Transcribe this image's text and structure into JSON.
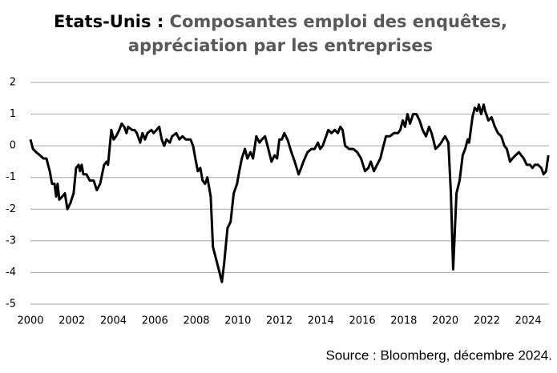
{
  "chart_data": {
    "type": "line",
    "title": "Etats-Unis :",
    "subtitle": "Composantes emploi des enquêtes, appréciation par les entreprises",
    "source": "Source : Bloomberg, décembre 2024.",
    "x": [
      2000.0,
      2000.12,
      2000.27,
      2000.46,
      2000.62,
      2000.77,
      2000.93,
      2001.04,
      2001.16,
      2001.24,
      2001.31,
      2001.39,
      2001.54,
      2001.66,
      2001.78,
      2001.93,
      2002.08,
      2002.2,
      2002.32,
      2002.39,
      2002.47,
      2002.55,
      2002.7,
      2002.86,
      2003.05,
      2003.2,
      2003.36,
      2003.55,
      2003.67,
      2003.74,
      2003.9,
      2004.01,
      2004.13,
      2004.28,
      2004.4,
      2004.52,
      2004.63,
      2004.71,
      2004.9,
      2005.02,
      2005.13,
      2005.29,
      2005.4,
      2005.52,
      2005.64,
      2005.83,
      2005.94,
      2006.21,
      2006.33,
      2006.45,
      2006.56,
      2006.72,
      2006.83,
      2007.03,
      2007.18,
      2007.33,
      2007.49,
      2007.72,
      2007.84,
      2007.95,
      2008.07,
      2008.19,
      2008.3,
      2008.42,
      2008.53,
      2008.69,
      2008.8,
      2009.0,
      2009.23,
      2009.34,
      2009.5,
      2009.65,
      2009.8,
      2009.96,
      2010.07,
      2010.19,
      2010.34,
      2010.46,
      2010.61,
      2010.73,
      2010.89,
      2011.04,
      2011.16,
      2011.31,
      2011.43,
      2011.62,
      2011.77,
      2011.89,
      2012.0,
      2012.12,
      2012.24,
      2012.39,
      2012.58,
      2012.74,
      2012.93,
      2013.05,
      2013.16,
      2013.36,
      2013.55,
      2013.7,
      2013.86,
      2013.97,
      2014.09,
      2014.2,
      2014.36,
      2014.51,
      2014.67,
      2014.82,
      2014.94,
      2015.05,
      2015.17,
      2015.36,
      2015.56,
      2015.75,
      2015.94,
      2016.13,
      2016.29,
      2016.41,
      2016.56,
      2016.71,
      2016.87,
      2016.98,
      2017.14,
      2017.33,
      2017.52,
      2017.72,
      2017.83,
      2017.95,
      2018.06,
      2018.18,
      2018.3,
      2018.45,
      2018.61,
      2018.76,
      2018.91,
      2019.07,
      2019.22,
      2019.34,
      2019.42,
      2019.53,
      2019.69,
      2019.8,
      2019.99,
      2020.15,
      2020.27,
      2020.38,
      2020.54,
      2020.69,
      2020.84,
      2020.96,
      2021.08,
      2021.15,
      2021.31,
      2021.42,
      2021.54,
      2021.62,
      2021.73,
      2021.85,
      2021.92,
      2022.08,
      2022.23,
      2022.39,
      2022.54,
      2022.7,
      2022.85,
      2022.97,
      2023.12,
      2023.24,
      2023.39,
      2023.55,
      2023.66,
      2023.78,
      2023.93,
      2024.09,
      2024.2,
      2024.32,
      2024.47,
      2024.63,
      2024.74,
      2024.86,
      2024.97
    ],
    "series": [
      {
        "color": "#000000",
        "values": [
          0.2,
          -0.1,
          -0.2,
          -0.3,
          -0.4,
          -0.4,
          -0.8,
          -1.2,
          -1.2,
          -1.6,
          -1.2,
          -1.7,
          -1.6,
          -1.5,
          -2.0,
          -1.8,
          -1.5,
          -0.7,
          -0.6,
          -0.8,
          -0.6,
          -0.9,
          -0.9,
          -1.1,
          -1.1,
          -1.4,
          -1.2,
          -0.6,
          -0.5,
          -0.6,
          0.5,
          0.2,
          0.3,
          0.5,
          0.7,
          0.6,
          0.4,
          0.6,
          0.5,
          0.5,
          0.4,
          0.1,
          0.4,
          0.2,
          0.4,
          0.5,
          0.4,
          0.6,
          0.2,
          0.0,
          0.2,
          0.1,
          0.3,
          0.4,
          0.2,
          0.3,
          0.2,
          0.2,
          0.0,
          -0.4,
          -0.8,
          -0.7,
          -1.1,
          -1.2,
          -1.0,
          -1.6,
          -3.2,
          -3.7,
          -4.3,
          -3.7,
          -2.6,
          -2.4,
          -1.5,
          -1.2,
          -0.8,
          -0.4,
          -0.1,
          -0.4,
          -0.2,
          -0.4,
          0.3,
          0.1,
          0.2,
          0.3,
          0.0,
          -0.5,
          -0.3,
          -0.4,
          0.2,
          0.2,
          0.4,
          0.2,
          -0.2,
          -0.5,
          -0.9,
          -0.7,
          -0.5,
          -0.2,
          -0.1,
          -0.1,
          0.1,
          -0.1,
          0.0,
          0.2,
          0.5,
          0.4,
          0.5,
          0.4,
          0.6,
          0.5,
          0.0,
          -0.1,
          -0.1,
          -0.2,
          -0.4,
          -0.8,
          -0.7,
          -0.5,
          -0.8,
          -0.6,
          -0.4,
          -0.1,
          0.3,
          0.3,
          0.4,
          0.4,
          0.5,
          0.8,
          0.6,
          1.0,
          0.7,
          1.0,
          1.0,
          0.8,
          0.5,
          0.3,
          0.6,
          0.4,
          0.2,
          -0.1,
          0.0,
          0.1,
          0.3,
          0.1,
          -1.5,
          -3.9,
          -1.5,
          -1.1,
          -0.3,
          -0.1,
          0.2,
          0.1,
          0.9,
          1.2,
          1.1,
          1.3,
          1.0,
          1.3,
          1.1,
          0.8,
          0.9,
          0.6,
          0.4,
          0.3,
          0.0,
          -0.1,
          -0.5,
          -0.4,
          -0.3,
          -0.2,
          -0.3,
          -0.4,
          -0.6,
          -0.6,
          -0.7,
          -0.6,
          -0.6,
          -0.7,
          -0.9,
          -0.8,
          -0.3
        ]
      }
    ],
    "xlim": [
      2000,
      2025
    ],
    "xticks": [
      2000,
      2002,
      2004,
      2006,
      2008,
      2010,
      2012,
      2014,
      2016,
      2018,
      2020,
      2022,
      2024
    ],
    "ylim": [
      -5,
      2
    ],
    "yticks": [
      -5,
      -4,
      -3,
      -2,
      -1,
      0,
      1,
      2
    ],
    "grid": true
  }
}
